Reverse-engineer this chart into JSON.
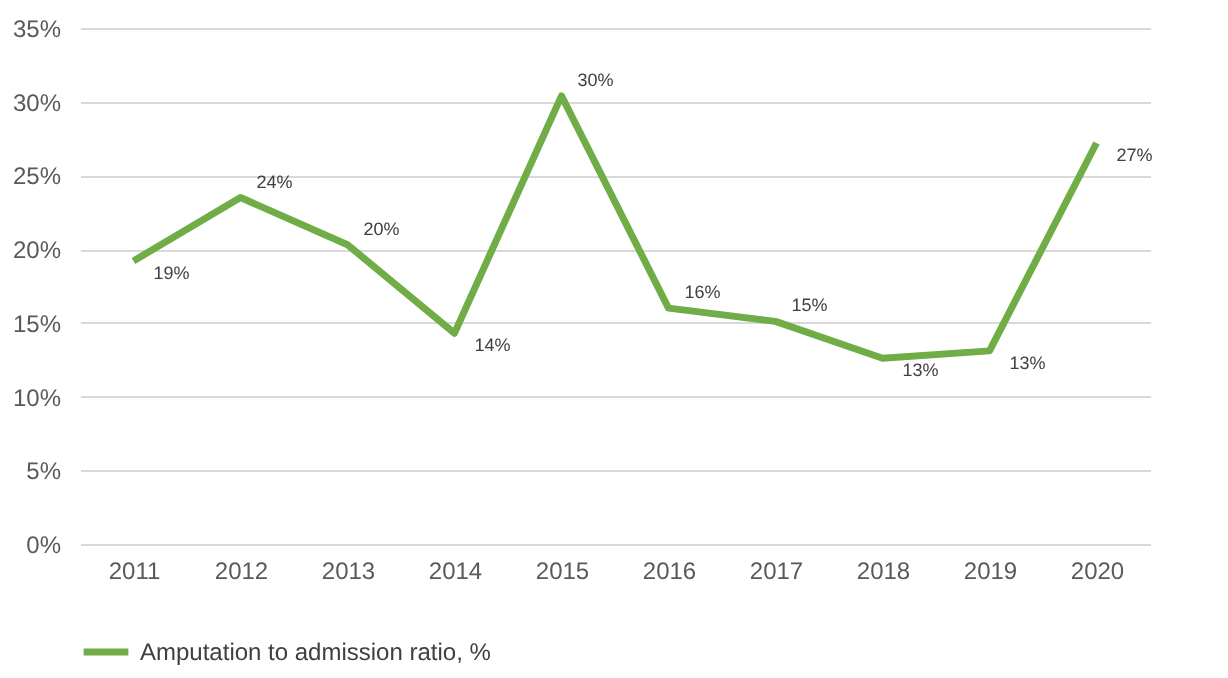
{
  "chart_data": {
    "type": "line",
    "categories": [
      "2011",
      "2012",
      "2013",
      "2014",
      "2015",
      "2016",
      "2017",
      "2018",
      "2019",
      "2020"
    ],
    "series": [
      {
        "name": "Amputation to admission ratio, %",
        "color": "#70ad47",
        "values": [
          19.2,
          23.5,
          20.3,
          14.3,
          30.4,
          16.0,
          15.1,
          12.6,
          13.1,
          27.2
        ],
        "value_labels": [
          "19%",
          "24%",
          "20%",
          "14%",
          "30%",
          "16%",
          "15%",
          "13%",
          "13%",
          "27%"
        ]
      }
    ],
    "ylim": [
      0,
      35
    ],
    "yticks": [
      {
        "value": 0,
        "label": "0%"
      },
      {
        "value": 5,
        "label": "5%"
      },
      {
        "value": 10,
        "label": "10%"
      },
      {
        "value": 15,
        "label": "15%"
      },
      {
        "value": 20,
        "label": "20%"
      },
      {
        "value": 25,
        "label": "25%"
      },
      {
        "value": 30,
        "label": "30%"
      },
      {
        "value": 35,
        "label": "35%"
      }
    ],
    "grid": "y",
    "legend": "bottom",
    "marker": "none",
    "line_style": "solid"
  }
}
